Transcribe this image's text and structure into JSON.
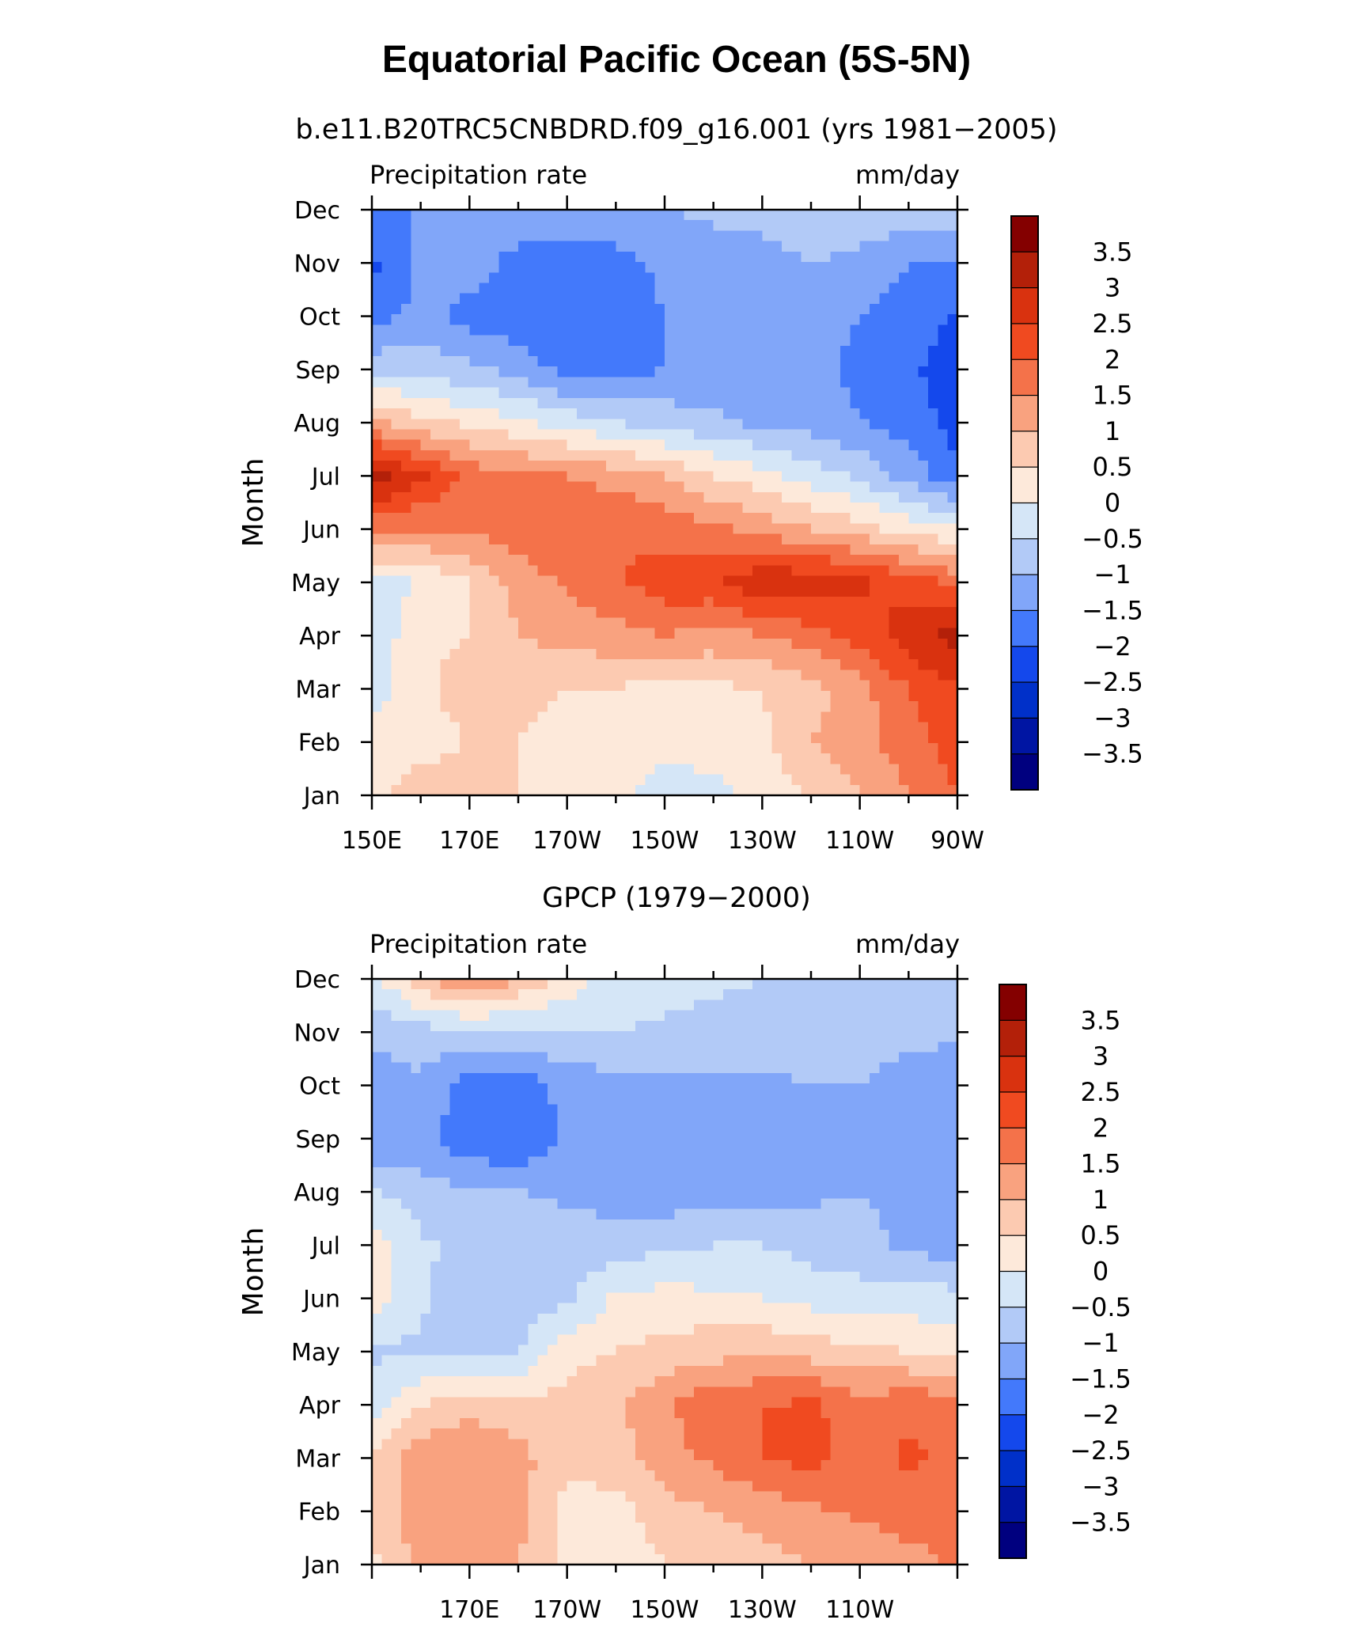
{
  "title": "Equatorial Pacific Ocean (5S-5N)",
  "colorbar": {
    "colors": [
      "#00007f",
      "#0015a3",
      "#0030c9",
      "#1448ec",
      "#4379fb",
      "#81a6f9",
      "#b2caf7",
      "#d5e6f7",
      "#fde9da",
      "#fccab1",
      "#f9a27f",
      "#f4724a",
      "#f04a20",
      "#d9320f",
      "#b32009",
      "#840000"
    ],
    "labels": [
      "3.5",
      "3",
      "2.5",
      "2",
      "1.5",
      "1",
      "0.5",
      "0",
      "−0.5",
      "−1",
      "−1.5",
      "−2",
      "−2.5",
      "−3",
      "−3.5"
    ]
  },
  "chart_data": [
    {
      "type": "heatmap",
      "subtitle": "b.e11.B20TRC5CNBDRD.f09_g16.001 (yrs 1981−2005)",
      "left_label": "Precipitation rate",
      "right_label": "mm/day",
      "ylabel": "Month",
      "y_ticks": [
        "Jan",
        "Feb",
        "Mar",
        "Apr",
        "May",
        "Jun",
        "Jul",
        "Aug",
        "Sep",
        "Oct",
        "Nov",
        "Dec"
      ],
      "x_ticks": [
        "150E",
        "170E",
        "170W",
        "150W",
        "130W",
        "110W",
        "90W"
      ],
      "x_range": [
        "150E",
        "90W"
      ],
      "colorbar_levels": [
        -3.5,
        -3,
        -2.5,
        -2,
        -1.5,
        -1,
        -0.5,
        0,
        0.5,
        1,
        1.5,
        2,
        2.5,
        3,
        3.5
      ],
      "x_lon": [
        150,
        160,
        170,
        180,
        190,
        200,
        210,
        220,
        230,
        240,
        250,
        260,
        270
      ],
      "y_months": [
        "Jan",
        "Feb",
        "Mar",
        "Apr",
        "May",
        "Jun",
        "Jul",
        "Aug",
        "Sep",
        "Oct",
        "Nov",
        "Dec"
      ],
      "z": [
        [
          0.3,
          0.8,
          0.8,
          0.5,
          0.4,
          0.2,
          -0.3,
          -0.2,
          0.2,
          0.5,
          1.0,
          1.5,
          2.0
        ],
        [
          0.2,
          0.3,
          0.5,
          0.5,
          0.3,
          0.3,
          0.2,
          0.3,
          0.4,
          1.0,
          1.3,
          1.8,
          2.2
        ],
        [
          -0.2,
          0.3,
          0.8,
          0.6,
          0.5,
          0.5,
          0.3,
          0.4,
          0.5,
          0.8,
          1.3,
          2.0,
          2.5
        ],
        [
          -0.4,
          0.4,
          0.5,
          1.0,
          1.2,
          1.3,
          1.5,
          1.3,
          1.5,
          1.8,
          2.2,
          2.8,
          3.2
        ],
        [
          -0.3,
          0.0,
          0.5,
          1.2,
          1.6,
          1.9,
          2.3,
          2.4,
          2.9,
          2.9,
          2.6,
          2.3,
          1.8
        ],
        [
          1.6,
          1.5,
          1.6,
          1.8,
          1.9,
          2.0,
          1.8,
          1.6,
          1.3,
          1.0,
          0.7,
          0.3,
          0.1
        ],
        [
          3.4,
          2.6,
          1.8,
          1.6,
          1.5,
          1.3,
          1.0,
          0.5,
          0.2,
          -0.3,
          -0.6,
          -1.2,
          -1.9
        ],
        [
          1.1,
          0.6,
          0.4,
          0.1,
          -0.2,
          -0.5,
          -0.7,
          -0.9,
          -1.1,
          -1.2,
          -1.5,
          -1.7,
          -2.2
        ],
        [
          -0.6,
          -0.7,
          -0.9,
          -1.2,
          -1.7,
          -1.7,
          -1.5,
          -1.3,
          -1.3,
          -1.4,
          -1.6,
          -1.9,
          -2.3
        ],
        [
          -1.8,
          -1.3,
          -1.7,
          -1.8,
          -1.9,
          -1.8,
          -1.5,
          -1.3,
          -1.2,
          -1.3,
          -1.5,
          -1.7,
          -2.1
        ],
        [
          -2.1,
          -1.4,
          -1.2,
          -1.7,
          -1.8,
          -1.7,
          -1.4,
          -1.2,
          -1.1,
          -1.0,
          -1.1,
          -1.5,
          -1.5
        ],
        [
          -1.7,
          -1.4,
          -1.3,
          -1.1,
          -1.1,
          -1.1,
          -1.0,
          -0.9,
          -0.9,
          -0.8,
          -0.7,
          -0.7,
          -0.6
        ]
      ]
    },
    {
      "type": "heatmap",
      "subtitle": "GPCP (1979−2000)",
      "left_label": "Precipitation rate",
      "right_label": "mm/day",
      "ylabel": "Month",
      "y_ticks": [
        "Jan",
        "Feb",
        "Mar",
        "Apr",
        "May",
        "Jun",
        "Jul",
        "Aug",
        "Sep",
        "Oct",
        "Nov",
        "Dec"
      ],
      "x_ticks": [
        "170E",
        "170W",
        "150W",
        "130W",
        "110W"
      ],
      "colorbar_levels": [
        -3.5,
        -3,
        -2.5,
        -2,
        -1.5,
        -1,
        -0.5,
        0,
        0.5,
        1,
        1.5,
        2,
        2.5,
        3,
        3.5
      ],
      "x_lon": [
        150,
        160,
        170,
        180,
        190,
        200,
        210,
        220,
        230,
        240,
        250,
        260,
        270
      ],
      "y_months": [
        "Jan",
        "Feb",
        "Mar",
        "Apr",
        "May",
        "Jun",
        "Jul",
        "Aug",
        "Sep",
        "Oct",
        "Nov",
        "Dec"
      ],
      "z": [
        [
          0.4,
          1.2,
          1.4,
          1.0,
          0.3,
          0.2,
          0.5,
          0.6,
          0.8,
          1.0,
          1.0,
          1.3,
          1.6
        ],
        [
          0.5,
          1.3,
          1.5,
          1.2,
          0.3,
          0.3,
          0.8,
          1.0,
          1.2,
          1.4,
          1.6,
          1.8,
          1.6
        ],
        [
          0.5,
          1.3,
          1.4,
          1.2,
          0.6,
          0.8,
          1.3,
          1.6,
          2.0,
          2.2,
          1.8,
          2.1,
          1.9
        ],
        [
          -0.2,
          0.5,
          0.9,
          0.6,
          0.7,
          0.9,
          1.4,
          1.9,
          2.0,
          2.1,
          1.7,
          1.9,
          1.7
        ],
        [
          -0.6,
          -0.6,
          -0.7,
          -0.5,
          0.3,
          0.5,
          0.7,
          0.8,
          0.9,
          0.8,
          0.6,
          0.5,
          0.4
        ],
        [
          0.3,
          -0.4,
          -0.8,
          -0.8,
          -0.6,
          0.1,
          0.2,
          0.1,
          0.0,
          -0.2,
          -0.3,
          -0.3,
          -0.3
        ],
        [
          0.3,
          -0.4,
          -0.7,
          -0.6,
          -0.7,
          -0.8,
          -0.6,
          -0.5,
          -0.5,
          -0.7,
          -0.8,
          -1.1,
          -1.3
        ],
        [
          -0.4,
          -0.8,
          -0.9,
          -1.0,
          -1.1,
          -1.2,
          -1.3,
          -1.3,
          -1.2,
          -1.1,
          -1.0,
          -1.2,
          -1.2
        ],
        [
          -1.5,
          -1.3,
          -1.9,
          -2.0,
          -1.4,
          -1.5,
          -1.3,
          -1.3,
          -1.3,
          -1.3,
          -1.2,
          -1.2,
          -1.2
        ],
        [
          -1.3,
          -1.1,
          -1.7,
          -1.8,
          -1.3,
          -1.2,
          -1.2,
          -1.1,
          -1.1,
          -1.0,
          -1.0,
          -1.2,
          -1.3
        ],
        [
          -0.9,
          -0.7,
          -0.6,
          -0.6,
          -0.5,
          -0.5,
          -0.6,
          -0.7,
          -0.8,
          -0.8,
          -0.8,
          -0.9,
          -0.9
        ],
        [
          -0.2,
          0.8,
          1.6,
          1.0,
          0.3,
          -0.2,
          -0.3,
          -0.4,
          -0.5,
          -0.6,
          -0.7,
          -0.8,
          -0.8
        ]
      ]
    }
  ]
}
